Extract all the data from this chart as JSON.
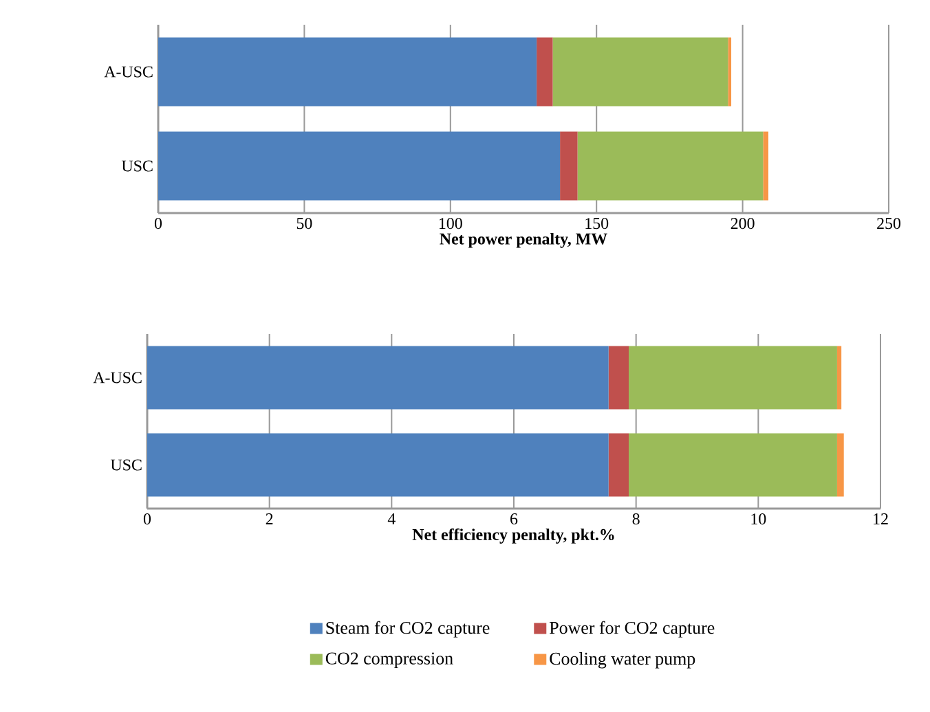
{
  "chart_data": [
    {
      "type": "bar",
      "orientation": "horizontal",
      "stacked": true,
      "xlabel": "Net power penalty, MW",
      "categories": [
        "A-USC",
        "USC"
      ],
      "xlim": [
        0,
        250
      ],
      "xticks": [
        0,
        50,
        100,
        150,
        200,
        250
      ],
      "grid": "x",
      "legend": false,
      "series": [
        {
          "color": "#4f81bd",
          "values": [
            129.5,
            137.5
          ]
        },
        {
          "color": "#c0504d",
          "values": [
            5.5,
            6
          ]
        },
        {
          "color": "#9bbb59",
          "values": [
            60,
            63.5
          ]
        },
        {
          "color": "#f79646",
          "values": [
            1.1,
            1.8
          ]
        }
      ]
    },
    {
      "type": "bar",
      "orientation": "horizontal",
      "stacked": true,
      "xlabel": "Net efficiency penalty, pkt.%",
      "categories": [
        "A-USC",
        "USC"
      ],
      "xlim": [
        0,
        12
      ],
      "xticks": [
        0,
        2,
        4,
        6,
        8,
        10,
        12
      ],
      "grid": "x",
      "legend": "bottom",
      "series": [
        {
          "name": "Steam for CO2 capture",
          "color": "#4f81bd",
          "values": [
            7.55,
            7.55
          ]
        },
        {
          "name": "Power for CO2 capture",
          "color": "#c0504d",
          "values": [
            0.33,
            0.33
          ]
        },
        {
          "name": "CO2 compression",
          "color": "#9bbb59",
          "values": [
            3.41,
            3.41
          ]
        },
        {
          "name": "Cooling water pump",
          "color": "#f79646",
          "values": [
            0.07,
            0.11
          ]
        }
      ]
    }
  ]
}
